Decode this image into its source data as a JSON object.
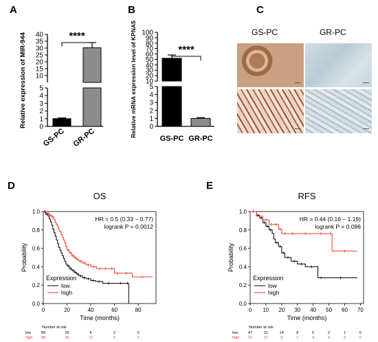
{
  "panels": {
    "A": "A",
    "B": "B",
    "C": "C",
    "D": "D",
    "E": "E"
  },
  "histology": {
    "columns": [
      "GS-PC",
      "GR-PC"
    ]
  },
  "chart_data": [
    {
      "panel": "A",
      "type": "bar",
      "categories": [
        "GS-PC",
        "GR-PC"
      ],
      "values": [
        1.0,
        30.2
      ],
      "errors": [
        0.1,
        3.8
      ],
      "ylabel": "Relative expression of MIR-944",
      "ylim": [
        0,
        40
      ],
      "axis_break": [
        5,
        5
      ],
      "yticks_lower": [
        "0",
        "1",
        "2",
        "3",
        "4",
        "5"
      ],
      "yticks_upper": [
        "10",
        "15",
        "20",
        "25",
        "30",
        "35",
        "40"
      ],
      "significance": "****",
      "colors": [
        "#000000",
        "#8c8c8c"
      ]
    },
    {
      "panel": "B",
      "type": "bar",
      "categories": [
        "GS-PC",
        "GR-PC"
      ],
      "values": [
        52,
        1.0
      ],
      "errors": [
        6,
        0.1
      ],
      "ylabel": "Relative mRNA expression level of KPNA5",
      "ylim": [
        0,
        100
      ],
      "axis_break": [
        5,
        10
      ],
      "yticks_lower": [
        "0",
        "1",
        "2",
        "3",
        "4",
        "5"
      ],
      "yticks_upper": [
        "10",
        "20",
        "30",
        "40",
        "50",
        "60",
        "70",
        "80",
        "90",
        "100"
      ],
      "significance": "****",
      "colors": [
        "#000000",
        "#8c8c8c"
      ]
    },
    {
      "panel": "D",
      "type": "line",
      "title": "OS",
      "xlabel": "Time (months)",
      "ylabel": "Probability",
      "xlim": [
        0,
        95
      ],
      "ylim": [
        0,
        1.0
      ],
      "xticks": [
        "0",
        "20",
        "40",
        "60",
        "80"
      ],
      "yticks": [
        "0.0",
        "0.2",
        "0.4",
        "0.6",
        "0.8",
        "1.0"
      ],
      "annotation": [
        "HR = 0.5 (0.33 − 0.77)",
        "logrank P = 0.0012"
      ],
      "legend_title": "Expression",
      "series": [
        {
          "name": "low",
          "color": "#000000",
          "x": [
            0,
            2,
            4,
            5,
            6,
            7,
            8,
            9,
            10,
            11,
            12,
            13,
            14,
            15,
            16,
            17,
            18,
            19,
            20,
            22,
            24,
            26,
            28,
            30,
            33,
            36,
            40,
            44,
            50,
            60,
            70,
            72
          ],
          "y": [
            1.0,
            0.97,
            0.95,
            0.92,
            0.89,
            0.85,
            0.81,
            0.77,
            0.73,
            0.69,
            0.65,
            0.61,
            0.58,
            0.55,
            0.52,
            0.49,
            0.46,
            0.43,
            0.41,
            0.38,
            0.36,
            0.34,
            0.32,
            0.3,
            0.28,
            0.27,
            0.25,
            0.24,
            0.22,
            0.22,
            0.22,
            0.0
          ]
        },
        {
          "name": "high",
          "color": "#e8392b",
          "x": [
            0,
            3,
            5,
            7,
            9,
            10,
            11,
            12,
            13,
            14,
            15,
            16,
            17,
            18,
            19,
            20,
            22,
            24,
            26,
            28,
            30,
            33,
            36,
            40,
            45,
            50,
            55,
            60,
            65,
            75,
            92
          ],
          "y": [
            1.0,
            0.98,
            0.96,
            0.94,
            0.91,
            0.88,
            0.86,
            0.83,
            0.8,
            0.78,
            0.75,
            0.72,
            0.69,
            0.66,
            0.62,
            0.58,
            0.55,
            0.52,
            0.5,
            0.48,
            0.46,
            0.44,
            0.42,
            0.4,
            0.38,
            0.38,
            0.38,
            0.33,
            0.33,
            0.29,
            0.29
          ]
        }
      ],
      "risk_table": {
        "header": "Number at risk",
        "times": [
          "0",
          "20",
          "40",
          "60",
          "80"
        ],
        "rows": [
          {
            "label": "low",
            "values": [
              "89",
              "26",
              "6",
              "2",
              "0"
            ],
            "color": "#000000"
          },
          {
            "label": "high",
            "values": [
              "88",
              "32",
              "11",
              "6",
              "1"
            ],
            "color": "#e8392b"
          }
        ]
      }
    },
    {
      "panel": "E",
      "type": "line",
      "title": "RFS",
      "xlabel": "Time (months)",
      "ylabel": "Probability",
      "xlim": [
        0,
        72
      ],
      "ylim": [
        0,
        1.0
      ],
      "xticks": [
        "0",
        "10",
        "20",
        "30",
        "40",
        "50",
        "60",
        "70"
      ],
      "yticks": [
        "0.0",
        "0.2",
        "0.4",
        "0.6",
        "0.8",
        "1.0"
      ],
      "annotation": [
        "HR = 0.44 (0.16 − 1.19)",
        "logrank P = 0.096"
      ],
      "legend_title": "Expression",
      "series": [
        {
          "name": "low",
          "color": "#000000",
          "x": [
            0,
            4,
            6,
            8,
            10,
            12,
            14,
            15,
            16,
            18,
            20,
            22,
            26,
            30,
            35,
            43,
            47,
            68
          ],
          "y": [
            1.0,
            0.96,
            0.93,
            0.88,
            0.84,
            0.8,
            0.76,
            0.7,
            0.66,
            0.62,
            0.55,
            0.5,
            0.46,
            0.43,
            0.4,
            0.28,
            0.28,
            0.28
          ]
        },
        {
          "name": "high",
          "color": "#e8392b",
          "x": [
            0,
            4,
            8,
            12,
            15,
            18,
            20,
            24,
            30,
            40,
            50,
            52,
            68
          ],
          "y": [
            1.0,
            0.95,
            0.91,
            0.86,
            0.86,
            0.81,
            0.76,
            0.76,
            0.76,
            0.76,
            0.76,
            0.57,
            0.57
          ]
        }
      ],
      "risk_table": {
        "header": "Number at risk",
        "times": [
          "0",
          "10",
          "20",
          "30",
          "40",
          "50",
          "60",
          "70"
        ],
        "rows": [
          {
            "label": "low",
            "values": [
              "47",
              "31",
              "14",
              "8",
              "5",
              "2",
              "1",
              "0"
            ],
            "color": "#000000"
          },
          {
            "label": "high",
            "values": [
              "22",
              "17",
              "9",
              "7",
              "4",
              "4",
              "2",
              "0"
            ],
            "color": "#e8392b"
          }
        ]
      }
    }
  ]
}
